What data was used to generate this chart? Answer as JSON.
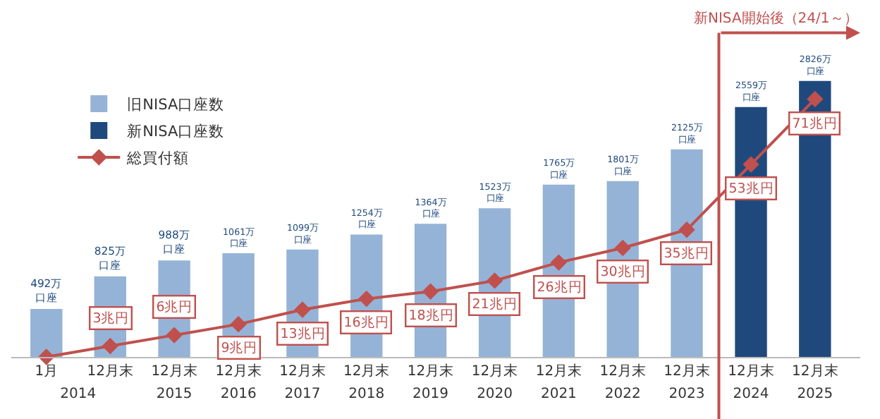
{
  "chart_data": {
    "type": "bar",
    "x": [
      "2014-01-01",
      "2014-12-31",
      "2015-12-31",
      "2016-12-31",
      "2017-12-31",
      "2018-12-31",
      "2019-12-31",
      "2020-12-31",
      "2021-12-31",
      "2022-12-31",
      "2023-12-31",
      "2024-12-31",
      "2025-12-31"
    ],
    "xlim": [
      "2013-06-15",
      "2026-09-15"
    ],
    "xticks": [
      {
        "value": "2014-01-01",
        "label": "1月"
      },
      {
        "value": "2014-12-31",
        "label": "12月末"
      },
      {
        "value": "2015-12-31",
        "label": "12月末"
      },
      {
        "value": "2016-12-31",
        "label": "12月末"
      },
      {
        "value": "2017-12-31",
        "label": "12月末"
      },
      {
        "value": "2018-12-31",
        "label": "12月末"
      },
      {
        "value": "2019-12-31",
        "label": "12月末"
      },
      {
        "value": "2020-12-31",
        "label": "12月末"
      },
      {
        "value": "2021-12-31",
        "label": "12月末"
      },
      {
        "value": "2022-12-31",
        "label": "12月末"
      },
      {
        "value": "2023-12-31",
        "label": "12月末"
      },
      {
        "value": "2024-12-31",
        "label": "12月末"
      },
      {
        "value": "2025-12-31",
        "label": "12月末"
      }
    ],
    "x2lim": [
      "2013-06-15",
      "2026-09-15"
    ],
    "x2ticks": [
      {
        "value": "2014-07-01",
        "label": "2014"
      },
      {
        "value": "2015-12-31",
        "label": "2015"
      },
      {
        "value": "2016-12-31",
        "label": "2016"
      },
      {
        "value": "2017-12-31",
        "label": "2017"
      },
      {
        "value": "2018-12-31",
        "label": "2018"
      },
      {
        "value": "2019-12-31",
        "label": "2019"
      },
      {
        "value": "2020-12-31",
        "label": "2020"
      },
      {
        "value": "2021-12-31",
        "label": "2021"
      },
      {
        "value": "2022-12-31",
        "label": "2022"
      },
      {
        "value": "2023-12-31",
        "label": "2023"
      },
      {
        "value": "2024-12-31",
        "label": "2024"
      },
      {
        "value": "2025-12-31",
        "label": "2025"
      }
    ],
    "series": [
      {
        "name": "旧NISA口座数",
        "color": "#95b3d7",
        "values": [
          492,
          825,
          988,
          1061,
          1099,
          1254,
          1364,
          1523,
          1765,
          1801,
          2125,
          null,
          null
        ],
        "value_labels": [
          "492万口座",
          "825万口座",
          "988万口座",
          "1061万口座",
          "1099万口座",
          "1254万口座",
          "1364万口座",
          "1523万口座",
          "1765万口座",
          "1801万口座",
          "2125万口座",
          null,
          null
        ]
      },
      {
        "name": "新NISA口座数",
        "color": "#1f497d",
        "values": [
          null,
          null,
          null,
          null,
          null,
          null,
          null,
          null,
          null,
          null,
          null,
          2559,
          2826
        ],
        "value_labels": [
          null,
          null,
          null,
          null,
          null,
          null,
          null,
          null,
          null,
          null,
          null,
          "2559万口座",
          "2826万口座"
        ]
      },
      {
        "name": "総買付額",
        "type": "line",
        "axis": "y2",
        "color": "#c0504d",
        "values": [
          0,
          3,
          6,
          9,
          13,
          16,
          18,
          21,
          26,
          30,
          35,
          53,
          71
        ],
        "value_labels": [
          null,
          "3兆円",
          "6兆円",
          "9兆円",
          "13兆円",
          "16兆円",
          "18兆円",
          "21兆円",
          "26兆円",
          "30兆円",
          "35兆円",
          "53兆円",
          "71兆円"
        ]
      }
    ],
    "ref_lines": [
      {
        "axis": "x",
        "value": "2024-07-01",
        "label": "新NISA開始後（24/1～）",
        "color": "#c0504d"
      }
    ],
    "marker": "diamond",
    "legend": "top left"
  }
}
